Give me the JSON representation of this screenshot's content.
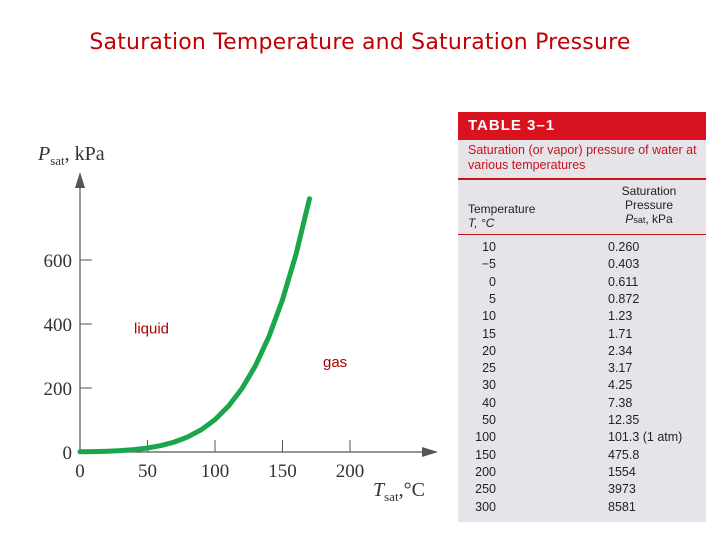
{
  "slide": {
    "title": "Saturation Temperature and Saturation Pressure"
  },
  "chart_data": {
    "type": "line",
    "title": "",
    "xlabel": "T_sat, °C",
    "ylabel": "P_sat, kPa",
    "xlim": [
      0,
      200
    ],
    "ylim": [
      0,
      600
    ],
    "xticks": [
      0,
      50,
      100,
      150,
      200
    ],
    "yticks": [
      0,
      200,
      400,
      600
    ],
    "grid": false,
    "series": [
      {
        "color": "#1aa64a",
        "x": [
          0,
          10,
          20,
          30,
          40,
          50,
          60,
          70,
          80,
          90,
          100,
          110,
          120,
          130,
          140,
          150,
          160,
          170
        ],
        "y": [
          0.611,
          1.23,
          2.34,
          4.25,
          7.38,
          12.35,
          19.9,
          31.2,
          47.4,
          70.1,
          101.3,
          143.3,
          198.5,
          270.1,
          361.3,
          475.8,
          617.8,
          791.7
        ]
      }
    ],
    "annotations": [
      {
        "text": "liquid",
        "x": 40,
        "y": 370
      },
      {
        "text": "gas",
        "x": 180,
        "y": 265
      }
    ]
  },
  "chart_labels": {
    "ylabel_main": "P",
    "ylabel_sub": "sat",
    "ylabel_unit": ", kPa",
    "xlabel_main": "T",
    "xlabel_sub": "sat",
    "xlabel_unit": ",°C"
  },
  "table": {
    "title": "TABLE 3–1",
    "caption": "Saturation (or vapor) pressure of water at various temperatures",
    "col1_line1": "Temperature",
    "col1_line2": "T, °C",
    "col2_line1": "Saturation",
    "col2_line2": "Pressure",
    "col2_line3_main": "P",
    "col2_line3_sub": "sat",
    "col2_line3_unit": ", kPa",
    "rows": [
      {
        "t": "10",
        "p": "0.260"
      },
      {
        "t": "−5",
        "p": "0.403"
      },
      {
        "t": "0",
        "p": "0.611"
      },
      {
        "t": "5",
        "p": "0.872"
      },
      {
        "t": "10",
        "p": "1.23"
      },
      {
        "t": "15",
        "p": "1.71"
      },
      {
        "t": "20",
        "p": "2.34"
      },
      {
        "t": "25",
        "p": "3.17"
      },
      {
        "t": "30",
        "p": "4.25"
      },
      {
        "t": "40",
        "p": "7.38"
      },
      {
        "t": "50",
        "p": "12.35"
      },
      {
        "t": "100",
        "p": "101.3 (1 atm)"
      },
      {
        "t": "150",
        "p": "475.8"
      },
      {
        "t": "200",
        "p": "1554"
      },
      {
        "t": "250",
        "p": "3973"
      },
      {
        "t": "300",
        "p": "8581"
      }
    ]
  }
}
